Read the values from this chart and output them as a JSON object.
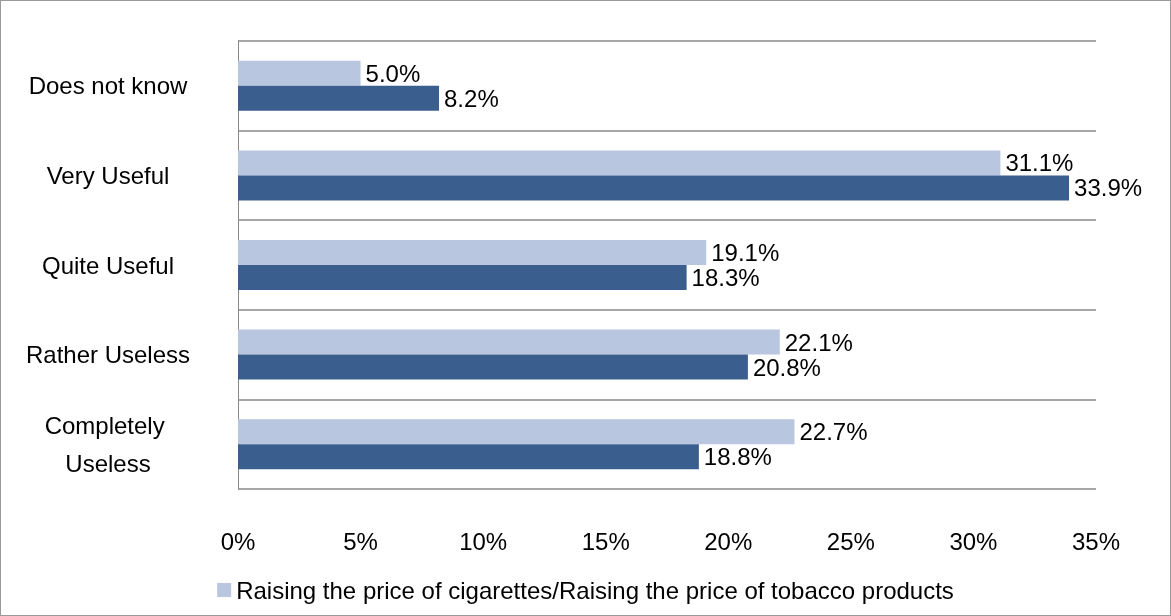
{
  "chart_data": {
    "type": "bar",
    "orientation": "horizontal",
    "categories": [
      "Does not know",
      "Very Useful",
      "Quite Useful",
      "Rather Useless",
      "Completely Useless"
    ],
    "series": [
      {
        "name": "Raising the price of cigarettes/Raising the price of tobacco products",
        "color": "#b9c6e0",
        "values": [
          5.0,
          31.1,
          19.1,
          22.1,
          22.7
        ],
        "value_labels": [
          "5.0%",
          "31.1%",
          "19.1%",
          "22.1%",
          "22.7%"
        ]
      },
      {
        "color": "#3a5f8f",
        "values": [
          8.2,
          33.9,
          18.3,
          20.8,
          18.8
        ],
        "value_labels": [
          "8.2%",
          "33.9%",
          "18.3%",
          "20.8%",
          "18.8%"
        ]
      }
    ],
    "xlim": [
      0,
      35
    ],
    "xticks": [
      {
        "value": 0,
        "label": "0%"
      },
      {
        "value": 5,
        "label": "5%"
      },
      {
        "value": 10,
        "label": "10%"
      },
      {
        "value": 15,
        "label": "15%"
      },
      {
        "value": 20,
        "label": "20%"
      },
      {
        "value": 25,
        "label": "25%"
      },
      {
        "value": 30,
        "label": "30%"
      },
      {
        "value": 35,
        "label": "35%"
      }
    ],
    "grid": "y",
    "legend": "bottom"
  }
}
